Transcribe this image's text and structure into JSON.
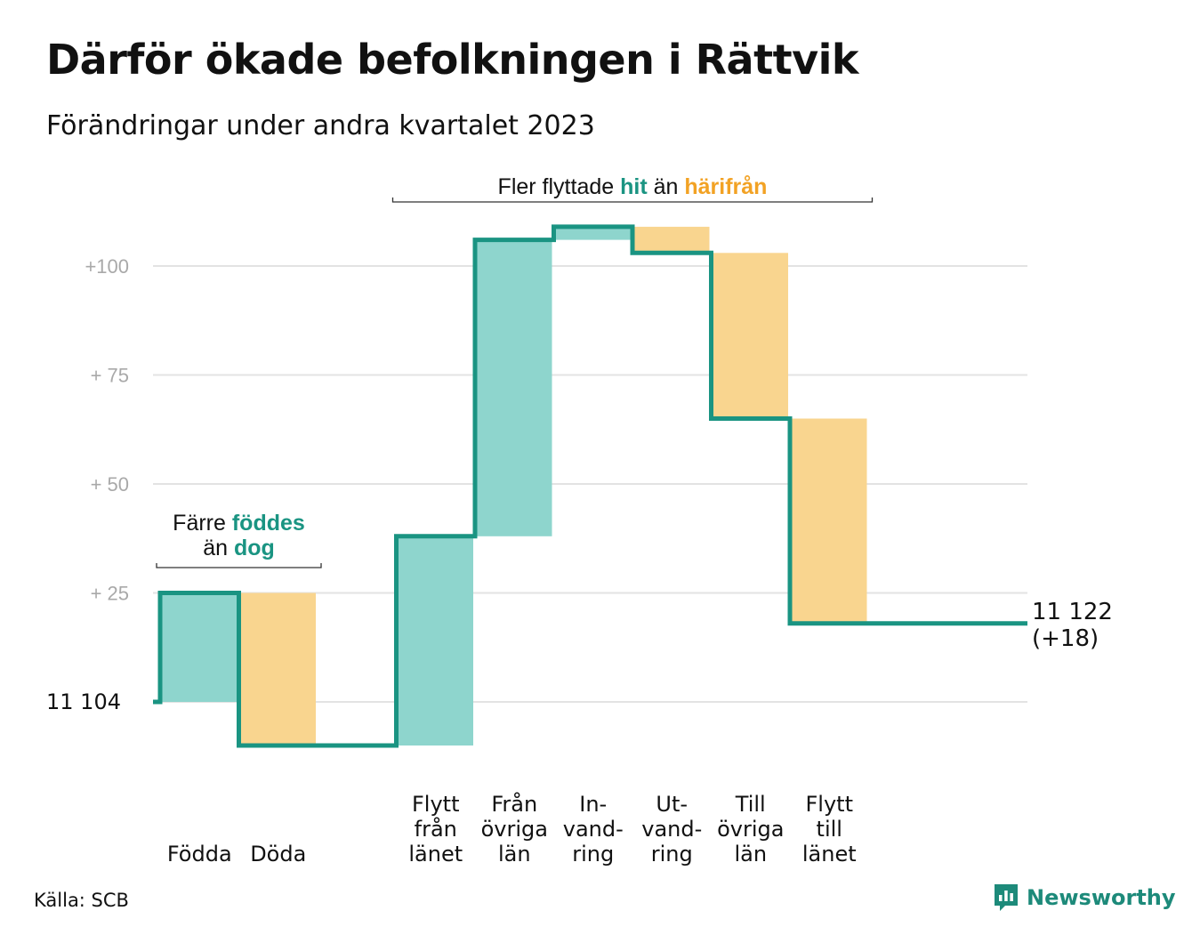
{
  "title": "Därför ökade befolkningen i Rättvik",
  "subtitle": "Förändringar under andra kvartalet 2023",
  "source": "Källa: SCB",
  "brand": "Newsworthy",
  "colors": {
    "line": "#1a9482",
    "increase": "#8ed5cd",
    "decrease": "#f9d58f",
    "increase_text": "#1a9482",
    "decrease_text": "#f2a224",
    "grid": "#e3e3e3",
    "tick": "#a9a9a9"
  },
  "chart_data": {
    "type": "waterfall",
    "baseline": 11104,
    "baseline_label": "11  104",
    "end_value": 11122,
    "end_label": "11 122",
    "end_change_label": "(+18)",
    "ylim": [
      -14,
      113
    ],
    "yticks": [
      {
        "value": 100,
        "label": "+100"
      },
      {
        "value": 75,
        "label": "+  75"
      },
      {
        "value": 50,
        "label": "+  50"
      },
      {
        "value": 25,
        "label": "+  25"
      }
    ],
    "steps": [
      {
        "label": [
          "Födda"
        ],
        "change": 25,
        "start": 0,
        "end": 25
      },
      {
        "label": [
          "Döda"
        ],
        "change": -35,
        "start": 25,
        "end": -10
      },
      {
        "label": [],
        "change": 0,
        "start": -10,
        "end": -10
      },
      {
        "label": [
          "Flytt",
          "från",
          "länet"
        ],
        "change": 48,
        "start": -10,
        "end": 38
      },
      {
        "label": [
          "Från",
          "övriga",
          "län"
        ],
        "change": 68,
        "start": 38,
        "end": 106
      },
      {
        "label": [
          "In-",
          "vand-",
          "ring"
        ],
        "change": 3,
        "start": 106,
        "end": 109
      },
      {
        "label": [
          "Ut-",
          "vand-",
          "ring"
        ],
        "change": -6,
        "start": 109,
        "end": 103
      },
      {
        "label": [
          "Till",
          "övriga",
          "län"
        ],
        "change": -38,
        "start": 103,
        "end": 65
      },
      {
        "label": [
          "Flytt",
          "till",
          "länet"
        ],
        "change": -47,
        "start": 65,
        "end": 18
      }
    ],
    "annotations": [
      {
        "lines": [
          [
            "Färre ",
            "föddes"
          ],
          [
            "än ",
            "dog"
          ]
        ],
        "spans_steps": [
          0,
          1
        ]
      },
      {
        "lines": [
          [
            "Fler flyttade ",
            "hit",
            " än ",
            "härifrån"
          ]
        ],
        "spans_steps": [
          3,
          8
        ]
      }
    ]
  }
}
